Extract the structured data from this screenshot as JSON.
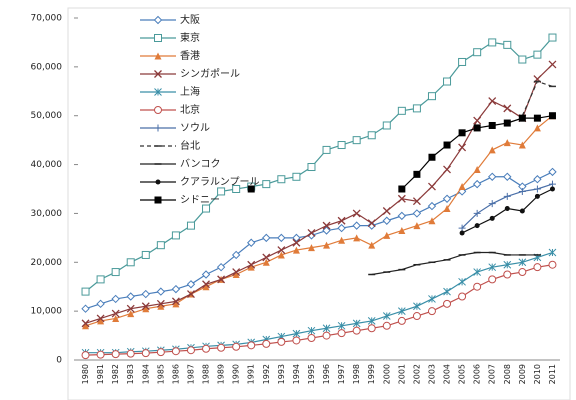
{
  "chart_data": {
    "type": "line",
    "categories": [
      "1980",
      "1981",
      "1982",
      "1983",
      "1984",
      "1985",
      "1986",
      "1987",
      "1988",
      "1989",
      "1990",
      "1991",
      "1992",
      "1993",
      "1994",
      "1995",
      "1996",
      "1997",
      "1998",
      "1999",
      "2000",
      "2001",
      "2002",
      "2003",
      "2004",
      "2005",
      "2006",
      "2007",
      "2008",
      "2009",
      "2010",
      "2011"
    ],
    "ylim": [
      0,
      70000
    ],
    "yticks": [
      0,
      {
        "value": 10000,
        "label": "10,000"
      },
      {
        "value": 20000,
        "label": "20,000"
      },
      {
        "value": 30000,
        "label": "30,000"
      },
      {
        "value": 40000,
        "label": "40,000"
      },
      {
        "value": 50000,
        "label": "50,000"
      },
      {
        "value": 60000,
        "label": "60,000"
      },
      {
        "value": 70000,
        "label": "70,000"
      }
    ],
    "series": [
      {
        "name": "大阪",
        "color": "#4a7ebb",
        "marker": "diamond",
        "values": [
          10500,
          11500,
          12500,
          13000,
          13500,
          14000,
          14500,
          15500,
          17500,
          19000,
          21500,
          24000,
          25000,
          25000,
          25000,
          25500,
          26500,
          27000,
          27500,
          27500,
          28500,
          29500,
          30000,
          31500,
          33000,
          34500,
          36000,
          37500,
          37500,
          35500,
          37000,
          38500
        ]
      },
      {
        "name": "東京",
        "color": "#4a9a9a",
        "marker": "square",
        "values": [
          14000,
          16500,
          18000,
          20000,
          21500,
          23500,
          25500,
          27500,
          31000,
          34500,
          35000,
          35500,
          36000,
          37000,
          37500,
          39500,
          43000,
          44000,
          45000,
          46000,
          48000,
          51000,
          51500,
          54000,
          57000,
          61000,
          63000,
          65000,
          64500,
          61500,
          62500,
          66000
        ]
      },
      {
        "name": "香港",
        "color": "#e07b39",
        "marker": "triangle",
        "values": [
          7000,
          8000,
          8500,
          9500,
          10500,
          11000,
          11500,
          13500,
          15000,
          16500,
          17500,
          19000,
          20000,
          21500,
          22500,
          23000,
          23500,
          24500,
          25000,
          23500,
          25500,
          26500,
          27500,
          28500,
          31000,
          35500,
          39000,
          43000,
          44500,
          44000,
          47500,
          50000
        ]
      },
      {
        "name": "シンガポール",
        "color": "#8b3a3a",
        "marker": "x",
        "values": [
          7500,
          8500,
          9500,
          10500,
          11000,
          11500,
          12000,
          13500,
          15500,
          16500,
          18000,
          19500,
          21000,
          22500,
          24000,
          26000,
          27500,
          28500,
          30000,
          28000,
          30500,
          33000,
          32500,
          35500,
          39000,
          43500,
          49000,
          53000,
          51500,
          49500,
          57500,
          60500
        ]
      },
      {
        "name": "上海",
        "color": "#3a8fa8",
        "marker": "star",
        "values": [
          1500,
          1500,
          1500,
          1700,
          1800,
          2000,
          2200,
          2500,
          2800,
          3000,
          3200,
          3600,
          4200,
          4800,
          5400,
          6000,
          6500,
          7000,
          7500,
          8000,
          9000,
          10000,
          11000,
          12500,
          14000,
          16000,
          18000,
          19000,
          19500,
          20000,
          21000,
          22000
        ]
      },
      {
        "name": "北京",
        "color": "#c0504d",
        "marker": "circle",
        "values": [
          1000,
          1100,
          1200,
          1300,
          1400,
          1600,
          1800,
          2000,
          2300,
          2500,
          2700,
          3000,
          3300,
          3700,
          4000,
          4500,
          5000,
          5500,
          6000,
          6500,
          7000,
          8000,
          9000,
          10000,
          11500,
          13000,
          15000,
          16500,
          17500,
          18000,
          19000,
          19500
        ]
      },
      {
        "name": "ソウル",
        "color": "#4a6fa8",
        "marker": "plus",
        "values": [
          null,
          null,
          null,
          null,
          null,
          null,
          null,
          null,
          null,
          null,
          null,
          null,
          null,
          null,
          null,
          null,
          null,
          null,
          null,
          null,
          null,
          null,
          null,
          null,
          null,
          27000,
          30000,
          32000,
          33500,
          34500,
          35000,
          36000
        ]
      },
      {
        "name": "台北",
        "color": "#333333",
        "marker": "dash",
        "dash": true,
        "values": [
          null,
          null,
          null,
          null,
          null,
          null,
          null,
          null,
          null,
          null,
          null,
          null,
          null,
          null,
          null,
          null,
          null,
          null,
          null,
          null,
          null,
          null,
          null,
          null,
          null,
          null,
          null,
          null,
          null,
          50000,
          57000,
          56000
        ]
      },
      {
        "name": "バンコク",
        "color": "#222222",
        "marker": "dash",
        "values": [
          null,
          null,
          null,
          null,
          null,
          null,
          null,
          null,
          null,
          null,
          null,
          null,
          null,
          null,
          null,
          null,
          null,
          null,
          null,
          17500,
          18000,
          18500,
          19500,
          20000,
          20500,
          21500,
          22000,
          22000,
          21500,
          21500,
          21500,
          null
        ]
      },
      {
        "name": "クアラルンプール",
        "color": "#111111",
        "marker": "dot",
        "values": [
          null,
          null,
          null,
          null,
          null,
          null,
          null,
          null,
          null,
          null,
          null,
          null,
          null,
          null,
          null,
          null,
          null,
          null,
          null,
          null,
          null,
          null,
          null,
          null,
          null,
          26000,
          27500,
          29000,
          31000,
          30500,
          33500,
          35000
        ]
      },
      {
        "name": "シドニー",
        "color": "#000000",
        "marker": "fsquare",
        "values": [
          null,
          null,
          null,
          null,
          null,
          null,
          null,
          null,
          null,
          null,
          null,
          35000,
          null,
          null,
          null,
          null,
          null,
          null,
          null,
          null,
          null,
          35000,
          38000,
          41500,
          44000,
          46500,
          47500,
          48000,
          48500,
          49500,
          49500,
          50000
        ]
      }
    ]
  }
}
